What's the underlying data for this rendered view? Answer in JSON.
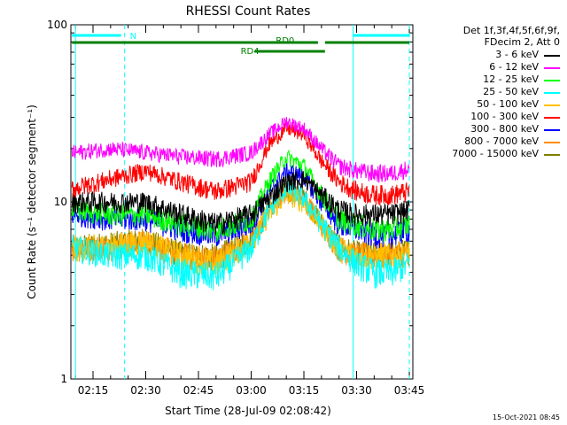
{
  "chart_data": {
    "type": "line",
    "title": "RHESSI Count Rates",
    "xlabel": "Start Time (28-Jul-09 02:08:42)",
    "ylabel": "Count Rate (s⁻¹ detector segment⁻¹)",
    "yscale": "log",
    "ylim": [
      1,
      100
    ],
    "xlim": [
      "02:08:42",
      "03:46:00"
    ],
    "x_ticks": [
      "02:15",
      "02:30",
      "02:45",
      "03:00",
      "03:15",
      "03:30",
      "03:45"
    ],
    "y_ticks": [
      "1",
      "10",
      "100"
    ],
    "grid": false,
    "legend_position": "right",
    "legend_header": [
      "Det 1f,3f,4f,5f,6f,9f,",
      "FDecim 2, Att 0"
    ],
    "x": [
      "02:10",
      "02:20",
      "02:30",
      "02:40",
      "02:50",
      "03:00",
      "03:05",
      "03:10",
      "03:15",
      "03:20",
      "03:25",
      "03:30",
      "03:35",
      "03:40",
      "03:45"
    ],
    "series": [
      {
        "name": "3 - 6 keV",
        "color": "#000000",
        "values": [
          10.0,
          10.0,
          10.0,
          8.5,
          7.5,
          8.5,
          10.5,
          13.0,
          13.5,
          11.0,
          9.0,
          8.5,
          8.5,
          8.5,
          9.0
        ]
      },
      {
        "name": "6 - 12 keV",
        "color": "#ff00ff",
        "values": [
          19.0,
          20.0,
          19.0,
          18.0,
          17.5,
          19.0,
          24.0,
          28.5,
          26.0,
          20.0,
          16.0,
          15.0,
          14.5,
          14.5,
          15.5
        ]
      },
      {
        "name": "12 - 25 keV",
        "color": "#00ff00",
        "values": [
          9.0,
          8.5,
          8.5,
          7.5,
          7.0,
          8.0,
          13.0,
          18.0,
          16.0,
          11.0,
          8.0,
          7.5,
          7.0,
          7.0,
          7.5
        ]
      },
      {
        "name": "25 - 50 keV",
        "color": "#00ffff",
        "values": [
          5.5,
          5.0,
          5.0,
          4.0,
          3.8,
          5.5,
          9.0,
          12.0,
          10.5,
          7.5,
          5.5,
          4.5,
          4.0,
          4.0,
          4.5
        ]
      },
      {
        "name": "50 - 100 keV",
        "color": "#ffc000",
        "values": [
          5.5,
          5.7,
          6.0,
          5.0,
          4.5,
          6.0,
          8.5,
          11.0,
          10.0,
          7.5,
          5.5,
          5.0,
          5.0,
          5.0,
          5.2
        ]
      },
      {
        "name": "100 - 300 keV",
        "color": "#ff0000",
        "values": [
          12.0,
          13.5,
          15.0,
          13.0,
          11.5,
          13.0,
          21.0,
          26.0,
          24.0,
          17.0,
          13.0,
          11.5,
          11.0,
          11.0,
          11.5
        ]
      },
      {
        "name": "300 - 800 keV",
        "color": "#0000ff",
        "values": [
          8.5,
          8.0,
          8.0,
          7.0,
          6.5,
          7.5,
          11.5,
          15.0,
          14.0,
          10.0,
          7.5,
          7.0,
          6.5,
          6.5,
          7.0
        ]
      },
      {
        "name": "800 - 7000 keV",
        "color": "#ff8c00",
        "values": [
          5.5,
          5.6,
          6.0,
          5.0,
          4.8,
          6.0,
          9.0,
          11.5,
          10.5,
          7.5,
          5.5,
          5.0,
          5.0,
          5.0,
          5.2
        ]
      },
      {
        "name": "7000 - 15000 keV",
        "color": "#808000",
        "values": [
          5.6,
          5.8,
          6.1,
          5.1,
          4.9,
          6.1,
          9.2,
          11.7,
          10.7,
          7.6,
          5.6,
          5.1,
          5.1,
          5.1,
          5.3
        ]
      }
    ],
    "annotations": {
      "night_label": "N",
      "attenuator_labels": [
        "RD0",
        "RD4"
      ]
    },
    "colors": {
      "axes": "#000000",
      "flag_night": "#00ffff",
      "flag_rd": "#008000",
      "vertical_markers": "#00ffff"
    }
  },
  "footer": {
    "timestamp": "15-Oct-2021 08:45"
  }
}
